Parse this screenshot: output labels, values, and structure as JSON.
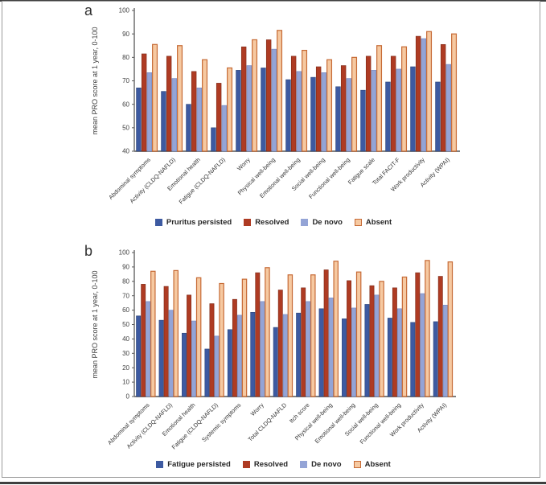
{
  "figure": {
    "panel_letters": {
      "a": "a",
      "b": "b"
    }
  },
  "chart_data": [
    {
      "type": "bar",
      "panel_label": "a",
      "title": "",
      "xlabel": "",
      "ylabel": "mean PRO score at 1 year, 0-100",
      "ylim": [
        40,
        100
      ],
      "ytick_step": 10,
      "grid": false,
      "legend_position": "bottom-center",
      "categories": [
        "Abdominal symptoms",
        "Activity (CLDQ-NAFLD)",
        "Emotional health",
        "Fatigue (CLDQ-NAFLD)",
        "Worry",
        "Physical well-being",
        "Emotional well-being",
        "Social well-being",
        "Functional well-being",
        "Fatigue scale",
        "Total FACIT-F",
        "Work productivity",
        "Activity (WPAI)"
      ],
      "series": [
        {
          "name": "Pruritus persisted",
          "color": "#3D5AA1",
          "stroke": "#2E4679",
          "values": [
            67,
            65.5,
            60,
            50,
            74.5,
            75.5,
            70.5,
            71.5,
            67.5,
            66,
            69.5,
            76,
            69.5
          ]
        },
        {
          "name": "Resolved",
          "color": "#AE3B23",
          "stroke": "#7E2A18",
          "values": [
            81.5,
            80.5,
            74,
            69,
            84.5,
            87.5,
            80.5,
            76,
            76.5,
            80.5,
            80.5,
            89,
            85.5
          ]
        },
        {
          "name": "De novo",
          "color": "#94A4D6",
          "stroke": "#7487BE",
          "values": [
            73.5,
            71,
            67,
            59.5,
            76.5,
            83.5,
            74,
            73.5,
            71,
            74.5,
            75,
            88,
            77
          ]
        },
        {
          "name": "Absent",
          "color": "#F6C9A1",
          "stroke": "#C66A35",
          "values": [
            85.5,
            85,
            79,
            75.5,
            87.5,
            91.5,
            83,
            79,
            80,
            85,
            84.5,
            91,
            90
          ]
        }
      ]
    },
    {
      "type": "bar",
      "panel_label": "b",
      "title": "",
      "xlabel": "",
      "ylabel": "mean PRO score at 1 year, 0-100",
      "ylim": [
        0,
        100
      ],
      "ytick_step": 10,
      "grid": false,
      "legend_position": "bottom-center",
      "categories": [
        "Abdominal symptoms",
        "Activity (CLDQ-NAFLD)",
        "Emotional health",
        "Fatigue (CLDQ-NAFLD)",
        "Systemic symptoms",
        "Worry",
        "Total CLDQ-NAFLD",
        "Itch score",
        "Physical well-being",
        "Emotional well-being",
        "Social well-being",
        "Functional well-being",
        "Work productivity",
        "Activity (WPAI)"
      ],
      "series": [
        {
          "name": "Fatigue persisted",
          "color": "#3D5AA1",
          "stroke": "#2E4679",
          "values": [
            56,
            53,
            44,
            33,
            46.5,
            58.5,
            48,
            58,
            61,
            54,
            64,
            54.5,
            51.5,
            52
          ]
        },
        {
          "name": "Resolved",
          "color": "#AE3B23",
          "stroke": "#7E2A18",
          "values": [
            78,
            76.5,
            70.5,
            64.5,
            67.5,
            86,
            74,
            75.5,
            88,
            80.5,
            77,
            75.5,
            86,
            83.5
          ]
        },
        {
          "name": "De novo",
          "color": "#94A4D6",
          "stroke": "#7487BE",
          "values": [
            66,
            60,
            52.5,
            42,
            56.5,
            66,
            57,
            66,
            68.5,
            61.5,
            70.5,
            61,
            71.5,
            63.5
          ]
        },
        {
          "name": "Absent",
          "color": "#F6C9A1",
          "stroke": "#C66A35",
          "values": [
            87,
            87.5,
            82.5,
            78.5,
            81.5,
            89.5,
            84.5,
            84.5,
            94,
            86.5,
            80,
            83,
            94.5,
            93.5
          ]
        }
      ]
    }
  ],
  "style_colors": {
    "axis_line": "#595959",
    "baseline": "#7F7F7F",
    "tick_text": "#404040",
    "category_text": "#333333",
    "legend_text": "#262626"
  }
}
